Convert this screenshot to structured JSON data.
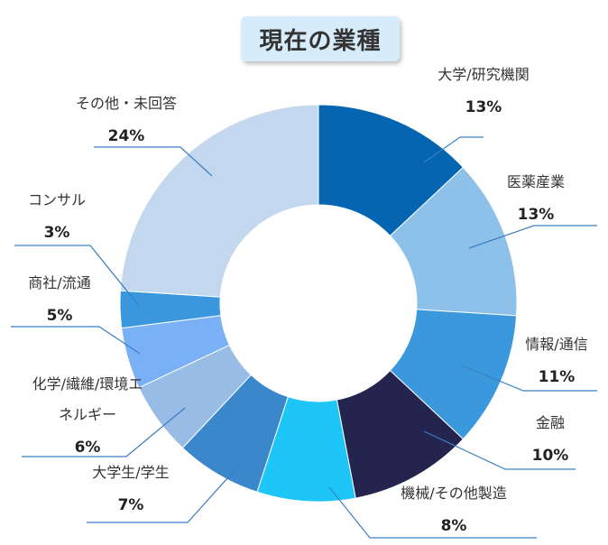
{
  "chart_data": {
    "type": "pie",
    "subtype": "donut",
    "title": "現在の業種",
    "categories": [
      "大学/研究機関",
      "医薬産業",
      "情報/通信",
      "金融",
      "機械/その他製造",
      "大学生/学生",
      "化学/繊維/環境エネルギー",
      "商社/流通",
      "コンサル",
      "その他・未回答"
    ],
    "values": [
      13,
      13,
      11,
      10,
      8,
      7,
      6,
      5,
      3,
      24
    ],
    "value_labels": [
      "13%",
      "13%",
      "11%",
      "10%",
      "8%",
      "7%",
      "6%",
      "5%",
      "3%",
      "24%"
    ],
    "label_lines": [
      [
        "大学/研究機関"
      ],
      [
        "医薬産業"
      ],
      [
        "情報/通信"
      ],
      [
        "金融"
      ],
      [
        "機械/その他製造"
      ],
      [
        "大学生/学生"
      ],
      [
        "化学/繊維/環境エ",
        "ネルギー"
      ],
      [
        "商社/流通"
      ],
      [
        "コンサル"
      ],
      [
        "その他・未回答"
      ]
    ],
    "colors": [
      "#0565b0",
      "#8dc1ea",
      "#3b98dc",
      "#23254f",
      "#1ec6f7",
      "#3a87cc",
      "#98bce5",
      "#7ab0f5",
      "#3a97dd",
      "#c3d8ee"
    ],
    "legend": "none",
    "grid": false
  }
}
